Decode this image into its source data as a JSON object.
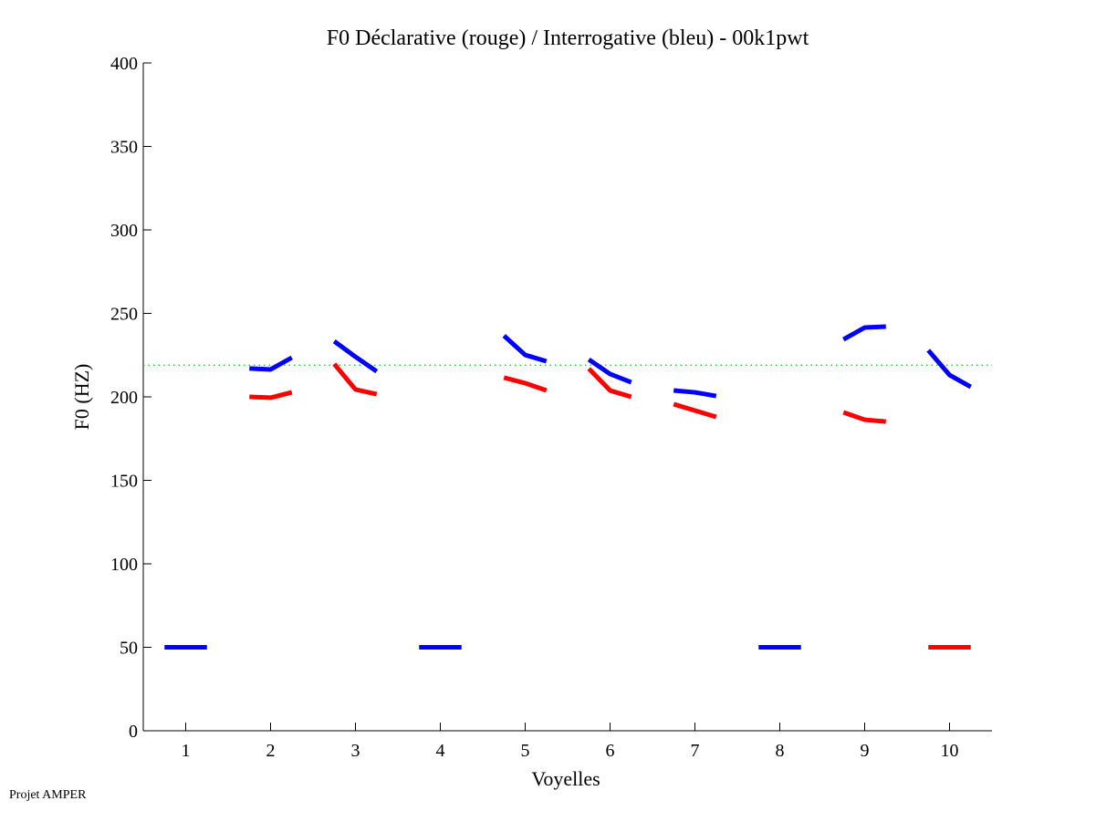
{
  "chart_data": {
    "type": "line",
    "title": "F0 Déclarative (rouge) / Interrogative (bleu) - 00k1pwt",
    "xlabel": "Voyelles",
    "ylabel": "F0 (HZ)",
    "xlim": [
      0.5,
      10.5
    ],
    "ylim": [
      0,
      400
    ],
    "xticks": [
      1,
      2,
      3,
      4,
      5,
      6,
      7,
      8,
      9,
      10
    ],
    "yticks": [
      0,
      50,
      100,
      150,
      200,
      250,
      300,
      350,
      400
    ],
    "reference_line": {
      "y": 219,
      "color": "#00cc00",
      "style": "dotted"
    },
    "series": [
      {
        "name": "Déclarative",
        "color": "#ff0000",
        "segments": [
          {
            "vowel": 2,
            "values": [
              200,
              199.5,
              202.7
            ]
          },
          {
            "vowel": 3,
            "values": [
              219.7,
              204.4,
              201.6
            ]
          },
          {
            "vowel": 5,
            "values": [
              211.5,
              208.2,
              203.8
            ]
          },
          {
            "vowel": 6,
            "values": [
              216.9,
              203.8,
              200
            ]
          },
          {
            "vowel": 7,
            "values": [
              195.6,
              191.8,
              188
            ]
          },
          {
            "vowel": 9,
            "values": [
              190.7,
              186.3,
              185.2
            ]
          },
          {
            "vowel": 10,
            "values": [
              50,
              50,
              50
            ]
          }
        ]
      },
      {
        "name": "Interrogative",
        "color": "#0000ff",
        "segments": [
          {
            "vowel": 1,
            "values": [
              50,
              50,
              50
            ]
          },
          {
            "vowel": 2,
            "values": [
              217,
              216.4,
              223.5
            ]
          },
          {
            "vowel": 3,
            "values": [
              233.3,
              224,
              215.3
            ]
          },
          {
            "vowel": 4,
            "values": [
              50,
              50,
              50
            ]
          },
          {
            "vowel": 5,
            "values": [
              236.6,
              225.1,
              221.3
            ]
          },
          {
            "vowel": 6,
            "values": [
              222.4,
              213.7,
              208.7
            ]
          },
          {
            "vowel": 7,
            "values": [
              203.8,
              202.7,
              200.5
            ]
          },
          {
            "vowel": 8,
            "values": [
              50,
              50,
              50
            ]
          },
          {
            "vowel": 9,
            "values": [
              234.4,
              241.5,
              242.1
            ]
          },
          {
            "vowel": 10,
            "values": [
              227.9,
              213.1,
              206
            ]
          }
        ]
      }
    ]
  },
  "footer": "Projet AMPER"
}
